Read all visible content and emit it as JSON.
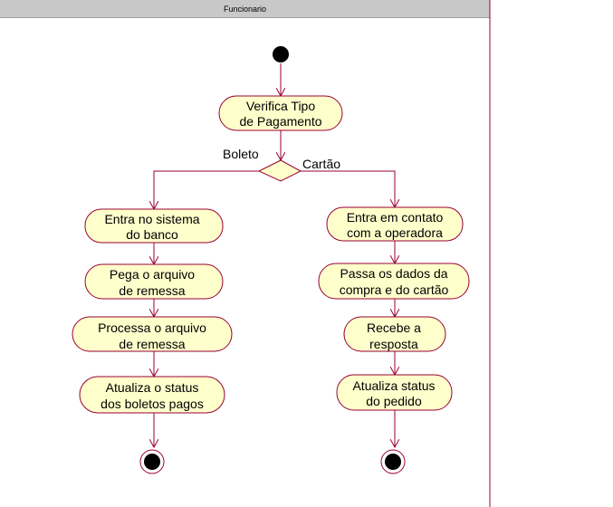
{
  "swimlane": {
    "title": "Funcionario"
  },
  "colors": {
    "line": "#990033",
    "node_fill": "#ffffcc",
    "swimlane_header": "#c8c8c8",
    "start_fill": "#000000"
  },
  "activities": {
    "verifica": [
      "Verifica Tipo",
      "de Pagamento"
    ],
    "entra_banco": [
      "Entra no sistema",
      "do banco"
    ],
    "pega_arquivo": [
      "Pega o arquivo",
      "de remessa"
    ],
    "processa_arquivo": [
      "Processa o arquivo",
      "de remessa"
    ],
    "atualiza_boletos": [
      "Atualiza o status",
      "dos boletos pagos"
    ],
    "entra_operadora": [
      "Entra em contato",
      "com a operadora"
    ],
    "passa_dados": [
      "Passa os dados da",
      "compra e do cartão"
    ],
    "recebe_resposta": [
      "Recebe a",
      "resposta"
    ],
    "atualiza_pedido": [
      "Atualiza status",
      "do pedido"
    ]
  },
  "guards": {
    "boleto": "Boleto",
    "cartao": "Cartão"
  }
}
